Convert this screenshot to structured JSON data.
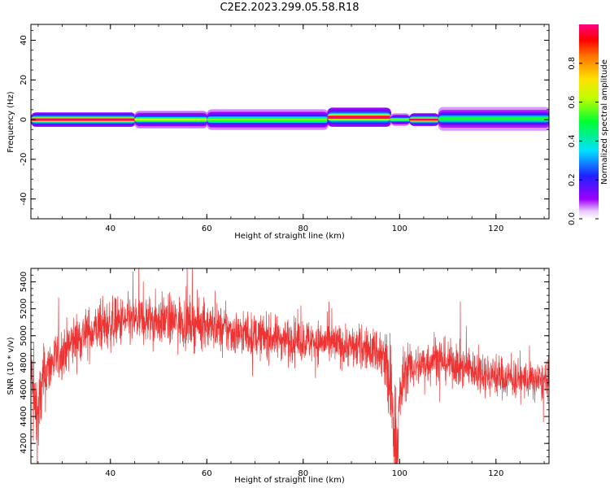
{
  "title": "C2E2.2023.299.05.58.R18",
  "chart_data": [
    {
      "type": "heatmap",
      "xlabel": "Height of straight line (km)",
      "ylabel": "Frequency (Hz)",
      "xlim": [
        23.5,
        131
      ],
      "ylim": [
        -50,
        48
      ],
      "xticks": [
        40,
        60,
        80,
        100,
        120
      ],
      "yticks": [
        -40,
        -20,
        0,
        20,
        40
      ],
      "colorbar": {
        "label": "Normalized spectral amplitude",
        "range": [
          0,
          1
        ],
        "ticks": [
          "0.0",
          "0.2",
          "0.4",
          "0.6",
          "0.8"
        ],
        "colormap": "rainbow (purple to magenta)"
      },
      "bands": [
        {
          "x": [
            23.5,
            45
          ],
          "center": 0,
          "halfwidth": 1.8,
          "intensity": 0.97
        },
        {
          "x": [
            45,
            60
          ],
          "center": 0,
          "halfwidth": 2.2,
          "intensity": 0.55
        },
        {
          "x": [
            60,
            85
          ],
          "center": 0,
          "halfwidth": 2.6,
          "intensity": 0.5
        },
        {
          "x": [
            85,
            98
          ],
          "center": 1.2,
          "halfwidth": 2.4,
          "intensity": 0.9
        },
        {
          "x": [
            98,
            102
          ],
          "center": 0,
          "halfwidth": 1.6,
          "intensity": 0.5
        },
        {
          "x": [
            102,
            108
          ],
          "center": 0,
          "halfwidth": 1.6,
          "intensity": 0.97
        },
        {
          "x": [
            108,
            131
          ],
          "center": 0.4,
          "halfwidth": 3,
          "intensity": 0.45
        }
      ]
    },
    {
      "type": "line",
      "xlabel": "Height of straight line (km)",
      "ylabel": "SNR (10 * v/v)",
      "xlim": [
        23.5,
        131
      ],
      "ylim": [
        4050,
        5500
      ],
      "xticks": [
        40,
        60,
        80,
        100,
        120
      ],
      "yticks": [
        4200,
        4400,
        4600,
        4800,
        5000,
        5200,
        5400
      ],
      "series": [
        {
          "color": "#ee3333",
          "x": [
            23.5,
            24,
            25,
            26,
            27,
            28,
            30,
            32,
            34,
            36,
            38,
            40,
            42,
            44,
            46,
            48,
            50,
            52,
            54,
            56,
            58,
            60,
            62,
            64,
            66,
            68,
            70,
            72,
            74,
            76,
            78,
            80,
            82,
            84,
            86,
            88,
            90,
            92,
            94,
            95,
            96,
            97,
            98,
            99,
            99.5,
            100,
            101,
            102,
            104,
            106,
            107,
            108,
            110,
            112,
            114,
            116,
            118,
            120,
            122,
            124,
            126,
            128,
            131
          ],
          "values": [
            4850,
            4500,
            4400,
            4650,
            4750,
            4800,
            4880,
            4950,
            5000,
            5030,
            5060,
            5080,
            5100,
            5110,
            5120,
            5120,
            5120,
            5115,
            5110,
            5100,
            5090,
            5080,
            5060,
            5040,
            5020,
            5010,
            5000,
            4990,
            4985,
            4980,
            4975,
            4970,
            4960,
            4950,
            4940,
            4930,
            4920,
            4910,
            4900,
            4890,
            4860,
            4800,
            4600,
            4300,
            4150,
            4500,
            4720,
            4760,
            4780,
            4800,
            4850,
            4830,
            4800,
            4780,
            4760,
            4740,
            4720,
            4700,
            4690,
            4680,
            4670,
            4660,
            4660
          ],
          "noise": [
            110,
            250,
            250,
            180,
            150,
            140,
            130,
            130,
            130,
            130,
            130,
            130,
            130,
            130,
            130,
            130,
            130,
            130,
            130,
            130,
            130,
            120,
            120,
            120,
            115,
            115,
            110,
            110,
            110,
            110,
            110,
            110,
            110,
            110,
            110,
            110,
            110,
            110,
            110,
            120,
            160,
            200,
            250,
            280,
            250,
            220,
            140,
            110,
            110,
            120,
            130,
            120,
            110,
            110,
            110,
            110,
            110,
            110,
            105,
            105,
            100,
            100,
            100
          ]
        }
      ]
    }
  ]
}
